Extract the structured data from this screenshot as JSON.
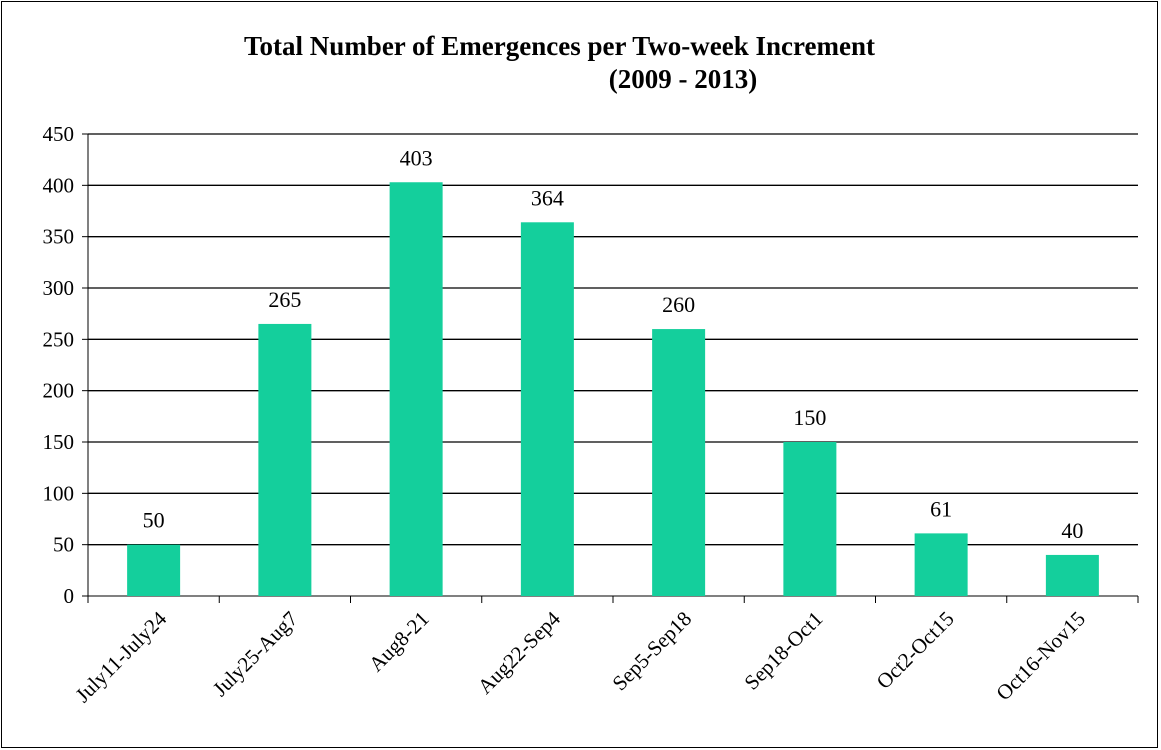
{
  "chart_data": {
    "type": "bar",
    "title_line1": "Total Number of Emergences per Two-week Increment",
    "title_line2": "(2009 - 2013)",
    "categories": [
      "July11-July24",
      "July25-Aug7",
      "Aug8-21",
      "Aug22-Sep4",
      "Sep5-Sep18",
      "Sep18-Oct1",
      "Oct2-Oct15",
      "Oct16-Nov15"
    ],
    "values": [
      50,
      265,
      403,
      364,
      260,
      150,
      61,
      40
    ],
    "data_labels": [
      "50",
      "265",
      "403",
      "364",
      "260",
      "150",
      "61",
      "40"
    ],
    "y_ticks": [
      "0",
      "50",
      "100",
      "150",
      "200",
      "250",
      "300",
      "350",
      "400",
      "450"
    ],
    "ylim": [
      0,
      450
    ],
    "xlabel": "",
    "ylabel": "",
    "grid": true,
    "legend": "none",
    "bar_color": "#14cf9c"
  }
}
